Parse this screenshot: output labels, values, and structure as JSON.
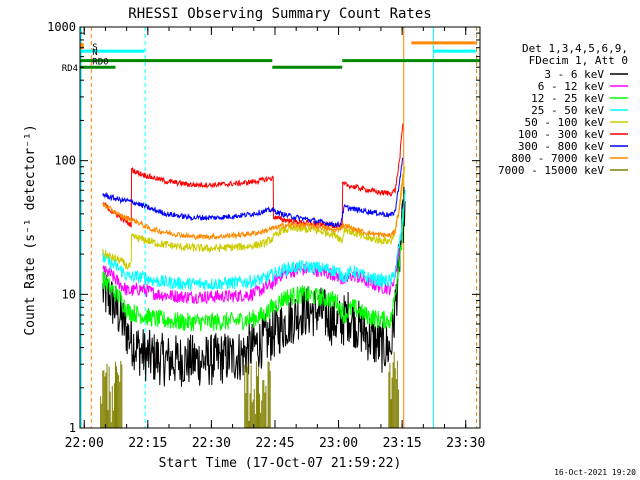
{
  "chart_data": {
    "type": "line",
    "title": "RHESSI Observing Summary Count Rates",
    "xlabel": "Start Time (17-Oct-07 21:59:22)",
    "ylabel": "Count Rate (s⁻¹ detector⁻¹)",
    "y_scale": "log",
    "ylim": [
      1,
      1000
    ],
    "xlim_minutes_after_start": [
      -0.37,
      94.0
    ],
    "x_ticks": [
      {
        "t": 0.63,
        "label": "22:00"
      },
      {
        "t": 15.63,
        "label": "22:15"
      },
      {
        "t": 30.63,
        "label": "22:30"
      },
      {
        "t": 45.63,
        "label": "22:45"
      },
      {
        "t": 60.63,
        "label": "23:00"
      },
      {
        "t": 75.63,
        "label": "23:15"
      },
      {
        "t": 90.63,
        "label": "23:30"
      }
    ],
    "y_ticks": [
      {
        "v": 1,
        "label": "1"
      },
      {
        "v": 10,
        "label": "10"
      },
      {
        "v": 100,
        "label": "100"
      },
      {
        "v": 1000,
        "label": "1000"
      }
    ],
    "legend": {
      "placement": "right",
      "header": [
        "Det 1,3,4,5,6,9,",
        "FDecim 1, Att 0"
      ]
    },
    "series": [
      {
        "name": "3 - 6 keV",
        "color": "#000000",
        "noise": 0.2,
        "points": [
          [
            5.0,
            10.5
          ],
          [
            7.0,
            9.0
          ],
          [
            9.0,
            7.0
          ],
          [
            11.0,
            5.0
          ],
          [
            13.0,
            4.0
          ],
          [
            15.0,
            3.5
          ],
          [
            20.0,
            3.2
          ],
          [
            25.0,
            3.2
          ],
          [
            30.0,
            3.2
          ],
          [
            35.0,
            3.4
          ],
          [
            38.0,
            3.5
          ],
          [
            40.0,
            4.0
          ],
          [
            43.0,
            4.5
          ],
          [
            45.0,
            5.0
          ],
          [
            48.0,
            6.0
          ],
          [
            52.0,
            7.5
          ],
          [
            56.0,
            7.5
          ],
          [
            59.0,
            6.5
          ],
          [
            61.0,
            6.0
          ],
          [
            63.0,
            7.0
          ],
          [
            66.0,
            5.5
          ],
          [
            69.0,
            4.5
          ],
          [
            71.0,
            4.0
          ],
          [
            73.0,
            4.0
          ],
          [
            74.0,
            8.0
          ],
          [
            75.2,
            22.0
          ],
          [
            76.3,
            50.0
          ]
        ]
      },
      {
        "name": "6 - 12 keV",
        "color": "#ff00ff",
        "noise": 0.05,
        "points": [
          [
            5.0,
            15.0
          ],
          [
            7.0,
            14.0
          ],
          [
            9.0,
            12.0
          ],
          [
            11.0,
            10.5
          ],
          [
            14.0,
            11.0
          ],
          [
            18.0,
            10.0
          ],
          [
            24.0,
            9.6
          ],
          [
            30.0,
            9.6
          ],
          [
            36.0,
            9.7
          ],
          [
            40.0,
            10.0
          ],
          [
            43.0,
            11.0
          ],
          [
            45.0,
            12.0
          ],
          [
            47.0,
            14.0
          ],
          [
            50.0,
            15.0
          ],
          [
            54.0,
            15.5
          ],
          [
            58.0,
            14.5
          ],
          [
            60.0,
            14.0
          ],
          [
            62.0,
            12.5
          ],
          [
            64.0,
            14.0
          ],
          [
            67.0,
            12.5
          ],
          [
            70.0,
            11.5
          ],
          [
            73.0,
            11.0
          ],
          [
            74.0,
            14.0
          ],
          [
            75.5,
            30.0
          ],
          [
            76.3,
            60.0
          ]
        ]
      },
      {
        "name": "12 - 25 keV",
        "color": "#00ff00",
        "noise": 0.07,
        "points": [
          [
            5.0,
            13.0
          ],
          [
            7.0,
            11.0
          ],
          [
            9.0,
            9.5
          ],
          [
            11.0,
            7.5
          ],
          [
            14.0,
            7.0
          ],
          [
            18.0,
            6.5
          ],
          [
            24.0,
            6.2
          ],
          [
            30.0,
            6.2
          ],
          [
            36.0,
            6.3
          ],
          [
            40.0,
            6.5
          ],
          [
            43.0,
            7.0
          ],
          [
            45.0,
            8.0
          ],
          [
            48.0,
            9.5
          ],
          [
            52.0,
            10.0
          ],
          [
            56.0,
            9.5
          ],
          [
            60.0,
            9.0
          ],
          [
            62.0,
            7.0
          ],
          [
            64.0,
            8.0
          ],
          [
            67.0,
            7.0
          ],
          [
            70.0,
            6.5
          ],
          [
            73.0,
            6.4
          ],
          [
            74.0,
            10.0
          ],
          [
            75.5,
            25.0
          ],
          [
            76.3,
            55.0
          ]
        ]
      },
      {
        "name": "25 - 50 keV",
        "color": "#00ffff",
        "noise": 0.05,
        "points": [
          [
            5.0,
            19.0
          ],
          [
            7.0,
            17.0
          ],
          [
            9.0,
            15.5
          ],
          [
            11.0,
            13.5
          ],
          [
            14.0,
            13.5
          ],
          [
            18.0,
            12.5
          ],
          [
            24.0,
            12.0
          ],
          [
            30.0,
            12.0
          ],
          [
            36.0,
            12.2
          ],
          [
            40.0,
            12.5
          ],
          [
            43.0,
            13.0
          ],
          [
            45.0,
            14.0
          ],
          [
            47.0,
            15.0
          ],
          [
            50.0,
            16.0
          ],
          [
            54.0,
            16.0
          ],
          [
            58.0,
            15.5
          ],
          [
            60.0,
            15.0
          ],
          [
            62.0,
            13.5
          ],
          [
            64.0,
            15.0
          ],
          [
            67.0,
            13.5
          ],
          [
            70.0,
            12.8
          ],
          [
            73.0,
            12.5
          ],
          [
            74.0,
            15.0
          ],
          [
            75.5,
            30.0
          ],
          [
            76.3,
            60.0
          ]
        ]
      },
      {
        "name": "50 - 100 keV",
        "color": "#cccc00",
        "noise": 0.03,
        "points": [
          [
            5.0,
            20.5
          ],
          [
            7.0,
            19.0
          ],
          [
            9.0,
            18.0
          ],
          [
            11.0,
            16.0
          ],
          [
            11.7,
            16.5
          ],
          [
            11.8,
            27.0
          ],
          [
            14.0,
            26.0
          ],
          [
            18.0,
            24.0
          ],
          [
            24.0,
            22.5
          ],
          [
            30.0,
            22.0
          ],
          [
            36.0,
            22.5
          ],
          [
            40.0,
            23.0
          ],
          [
            43.0,
            24.0
          ],
          [
            45.0,
            26.0
          ],
          [
            47.0,
            30.0
          ],
          [
            50.0,
            31.0
          ],
          [
            54.0,
            30.5
          ],
          [
            58.0,
            29.0
          ],
          [
            60.0,
            28.0
          ],
          [
            61.5,
            25.0
          ],
          [
            62.0,
            31.0
          ],
          [
            64.0,
            29.0
          ],
          [
            67.0,
            26.5
          ],
          [
            70.0,
            25.5
          ],
          [
            73.0,
            25.0
          ],
          [
            74.0,
            30.0
          ],
          [
            75.5,
            55.0
          ],
          [
            76.3,
            90.0
          ]
        ]
      },
      {
        "name": "100 - 300 keV",
        "color": "#ff0000",
        "noise": 0.02,
        "points": [
          [
            5.0,
            48.0
          ],
          [
            7.0,
            42.0
          ],
          [
            9.0,
            38.0
          ],
          [
            11.0,
            34.0
          ],
          [
            11.7,
            33.0
          ],
          [
            11.8,
            86.0
          ],
          [
            13.0,
            82.0
          ],
          [
            16.0,
            76.0
          ],
          [
            20.0,
            70.0
          ],
          [
            26.0,
            66.0
          ],
          [
            32.0,
            66.0
          ],
          [
            38.0,
            68.0
          ],
          [
            42.0,
            71.0
          ],
          [
            45.0,
            74.0
          ],
          [
            45.2,
            74.0
          ],
          [
            45.3,
            38.0
          ],
          [
            47.0,
            36.5
          ],
          [
            50.0,
            35.0
          ],
          [
            54.0,
            34.0
          ],
          [
            58.0,
            33.0
          ],
          [
            61.0,
            32.5
          ],
          [
            61.5,
            32.5
          ],
          [
            61.6,
            67.0
          ],
          [
            64.0,
            64.0
          ],
          [
            67.0,
            61.0
          ],
          [
            70.0,
            58.0
          ],
          [
            73.0,
            57.0
          ],
          [
            74.0,
            60.0
          ],
          [
            75.0,
            100.0
          ],
          [
            75.8,
            190.0
          ]
        ]
      },
      {
        "name": "300 - 800 keV",
        "color": "#0000ff",
        "noise": 0.02,
        "points": [
          [
            5.0,
            56.0
          ],
          [
            7.0,
            53.0
          ],
          [
            9.0,
            51.0
          ],
          [
            11.0,
            50.0
          ],
          [
            13.0,
            48.0
          ],
          [
            16.0,
            44.0
          ],
          [
            20.0,
            40.0
          ],
          [
            26.0,
            37.5
          ],
          [
            32.0,
            37.5
          ],
          [
            38.0,
            39.0
          ],
          [
            42.0,
            41.0
          ],
          [
            45.0,
            43.0
          ],
          [
            47.0,
            40.0
          ],
          [
            50.0,
            38.0
          ],
          [
            54.0,
            36.0
          ],
          [
            58.0,
            34.0
          ],
          [
            61.0,
            33.0
          ],
          [
            62.0,
            45.0
          ],
          [
            64.0,
            43.5
          ],
          [
            67.0,
            42.0
          ],
          [
            70.0,
            40.5
          ],
          [
            73.0,
            39.0
          ],
          [
            74.0,
            42.0
          ],
          [
            75.0,
            70.0
          ],
          [
            75.8,
            105.0
          ]
        ]
      },
      {
        "name": "800 - 7000 keV",
        "color": "#ff8800",
        "noise": 0.02,
        "points": [
          [
            5.0,
            47.0
          ],
          [
            7.0,
            43.0
          ],
          [
            9.0,
            39.0
          ],
          [
            11.0,
            37.0
          ],
          [
            13.0,
            35.0
          ],
          [
            16.0,
            31.0
          ],
          [
            20.0,
            29.0
          ],
          [
            26.0,
            27.0
          ],
          [
            32.0,
            27.0
          ],
          [
            38.0,
            28.0
          ],
          [
            42.0,
            29.0
          ],
          [
            45.0,
            31.0
          ],
          [
            48.0,
            33.0
          ],
          [
            52.0,
            33.0
          ],
          [
            56.0,
            32.0
          ],
          [
            60.0,
            30.0
          ],
          [
            62.0,
            33.0
          ],
          [
            64.0,
            31.0
          ],
          [
            67.0,
            29.0
          ],
          [
            70.0,
            28.0
          ],
          [
            73.0,
            27.5
          ],
          [
            74.0,
            30.0
          ],
          [
            75.0,
            45.0
          ],
          [
            75.8,
            80.0
          ]
        ]
      },
      {
        "name": "7000 - 15000 keV",
        "color": "#808000",
        "noise": 0,
        "points": [
          [
            5.0,
            3.0
          ],
          [
            6.0,
            2.2
          ],
          [
            7.0,
            3.0
          ],
          [
            8.0,
            1.8
          ],
          [
            9.0,
            2.0
          ]
        ]
      }
    ],
    "markers": {
      "flags": [
        {
          "label": "S",
          "color": "#ff8800",
          "level": 720,
          "t0": -0.3,
          "t1": 0.5,
          "style": "rect"
        },
        {
          "label": "N",
          "color": "#00ffff",
          "level": 660,
          "t0": -0.3,
          "t1": 14.8,
          "style": "line"
        },
        {
          "label": "RD0",
          "color": "#008800",
          "level": 560,
          "t0": -0.3,
          "t1": 45.0,
          "style": "line"
        },
        {
          "label": "",
          "color": "#008800",
          "level": 560,
          "t0": 61.5,
          "t1": 94.0,
          "style": "line"
        },
        {
          "label": "RD4",
          "color": "#008800",
          "level": 500,
          "t0": -0.3,
          "t1": 8.0,
          "style": "line"
        },
        {
          "label": "",
          "color": "#008800",
          "level": 500,
          "t0": 45.0,
          "t1": 61.5,
          "style": "line"
        },
        {
          "label": "",
          "color": "#ff8800",
          "level": 760,
          "t0": 77.8,
          "t1": 93.0,
          "style": "line"
        },
        {
          "label": "",
          "color": "#00ffff",
          "level": 660,
          "t0": 83.0,
          "t1": 93.0,
          "style": "line"
        }
      ],
      "vlines": [
        {
          "t": 2.3,
          "color": "#ff8800",
          "dashed": true
        },
        {
          "t": 15.0,
          "color": "#00ffff",
          "dashed": true
        },
        {
          "t": 76.0,
          "color": "#ff8800",
          "dashed": false
        },
        {
          "t": 83.0,
          "color": "#00ffff",
          "dashed": false
        },
        {
          "t": -0.1,
          "color": "#00ffff",
          "dashed": false
        },
        {
          "t": 93.2,
          "color": "#00ffff",
          "dashed": true
        },
        {
          "t": 93.2,
          "color": "#ff8800",
          "dashed": true
        }
      ]
    }
  },
  "footer": {
    "timestamp": "16-Oct-2021 19:20"
  }
}
